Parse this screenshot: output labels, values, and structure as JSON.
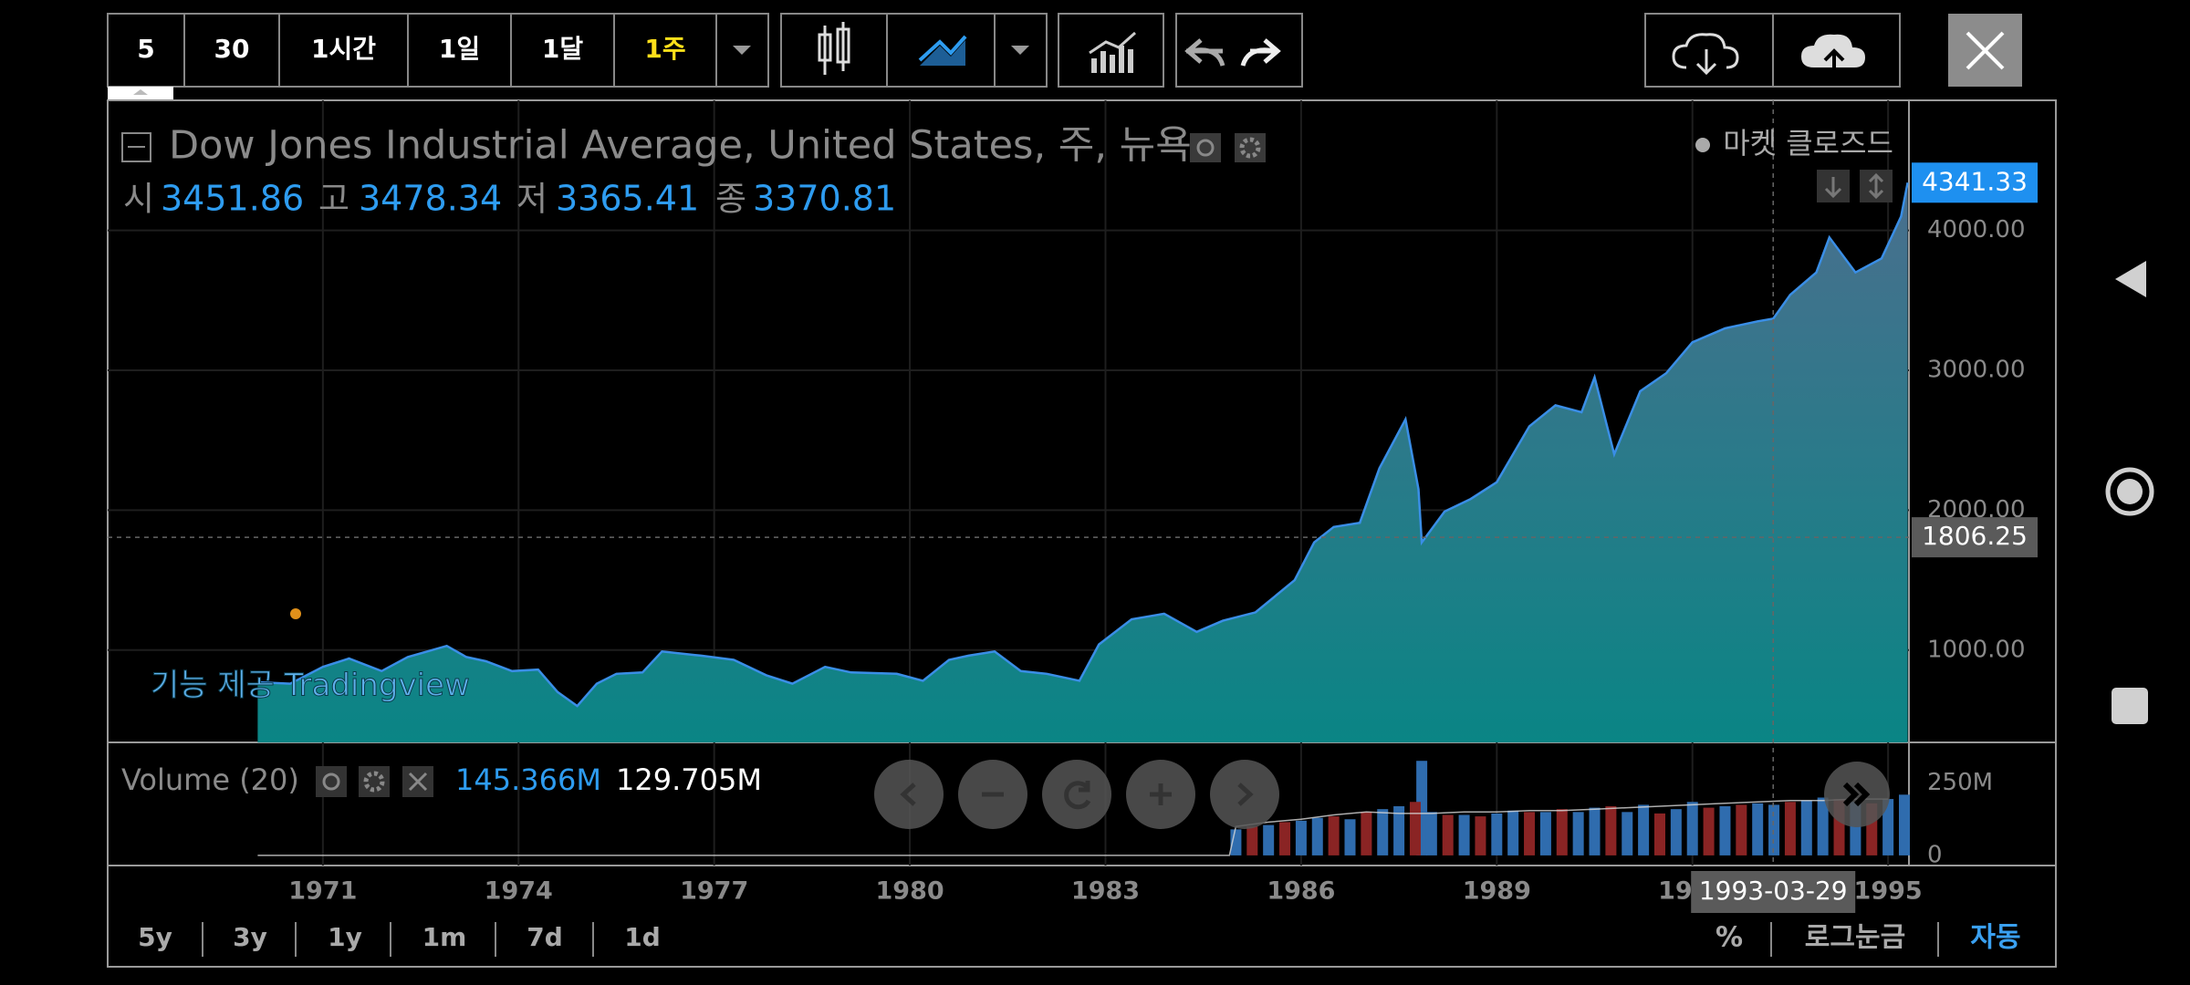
{
  "toolbar": {
    "intervals": [
      "5",
      "30",
      "1시간",
      "1일",
      "1달",
      "1주"
    ],
    "active": "1주"
  },
  "chart_data": {
    "type": "area",
    "title": "Dow Jones Industrial Average, United States, 주, 뉴욕",
    "status": "마켓 클로즈드",
    "ohlc": [
      {
        "label": "시",
        "value": 3451.86
      },
      {
        "label": "고",
        "value": 3478.34
      },
      {
        "label": "저",
        "value": 3365.41
      },
      {
        "label": "종",
        "value": 3370.81
      }
    ],
    "watermark": "기능 제공 Tradingview",
    "x": [
      1970.0,
      1970.5,
      1971.0,
      1971.4,
      1971.9,
      1972.3,
      1972.9,
      1973.2,
      1973.5,
      1973.9,
      1974.3,
      1974.6,
      1974.9,
      1975.2,
      1975.5,
      1975.9,
      1976.2,
      1976.8,
      1977.3,
      1977.8,
      1978.2,
      1978.7,
      1979.1,
      1979.8,
      1980.2,
      1980.6,
      1980.9,
      1981.3,
      1981.7,
      1982.1,
      1982.6,
      1982.9,
      1983.4,
      1983.9,
      1984.4,
      1984.8,
      1985.3,
      1985.9,
      1986.2,
      1986.5,
      1986.9,
      1987.2,
      1987.6,
      1987.8,
      1987.85,
      1988.2,
      1988.6,
      1989.0,
      1989.5,
      1989.9,
      1990.3,
      1990.5,
      1990.8,
      1991.2,
      1991.6,
      1992.0,
      1992.5,
      1993.0,
      1993.24,
      1993.5,
      1993.9,
      1994.1,
      1994.5,
      1994.9,
      1995.2,
      1995.3
    ],
    "values": [
      770,
      760,
      880,
      940,
      850,
      950,
      1030,
      950,
      920,
      850,
      860,
      700,
      600,
      760,
      830,
      840,
      990,
      960,
      930,
      820,
      760,
      880,
      840,
      830,
      780,
      930,
      960,
      990,
      850,
      830,
      780,
      1040,
      1220,
      1260,
      1130,
      1210,
      1270,
      1500,
      1770,
      1880,
      1910,
      2300,
      2650,
      2150,
      1770,
      1990,
      2080,
      2200,
      2600,
      2750,
      2700,
      2950,
      2400,
      2850,
      2980,
      3200,
      3300,
      3350,
      3370,
      3540,
      3700,
      3950,
      3700,
      3800,
      4100,
      4341.33
    ],
    "color": "#3a8ee6",
    "fill_top": "#4a6f8e",
    "fill_bottom": "#0a8585",
    "xlim": [
      1967.7,
      1995.32
    ],
    "xticks": [
      1971,
      1974,
      1977,
      1980,
      1983,
      1986,
      1989,
      1992,
      1995
    ],
    "ylim": [
      340,
      4930
    ],
    "yticks": [
      {
        "value": 1000,
        "label": "1000.00"
      },
      {
        "value": 2000,
        "label": "2000.00"
      },
      {
        "value": 3000,
        "label": "3000.00"
      },
      {
        "value": 4000,
        "label": "4000.00"
      }
    ],
    "grid": true,
    "last_price": 4341.33,
    "crosshair": {
      "date": "1993-03-29",
      "price": 1806.25
    },
    "volume": {
      "title": "Volume (20)",
      "readouts": [
        {
          "value": 145.366,
          "label": "145.366M",
          "color": "#2e9cf0"
        },
        {
          "value": 129.705,
          "label": "129.705M",
          "color": "#ffffff"
        }
      ],
      "ylim": [
        -35,
        375
      ],
      "yticks": [
        {
          "value": 250,
          "label": "250M"
        },
        0
      ],
      "series": [
        {
          "color": "#2f6cae",
          "x": [
            1985.0,
            1985.5,
            1986.0,
            1986.25,
            1986.75,
            1987.25,
            1987.5,
            1987.85,
            1988.0,
            1988.5,
            1989.0,
            1989.25,
            1989.75,
            1990.25,
            1990.5,
            1991.0,
            1991.25,
            1991.75,
            1992.0,
            1992.5,
            1993.0,
            1993.25,
            1993.75,
            1994.0,
            1994.5,
            1995.0,
            1995.25
          ],
          "values": [
            90,
            105,
            120,
            130,
            125,
            160,
            170,
            327,
            150,
            140,
            145,
            155,
            150,
            150,
            165,
            150,
            175,
            160,
            185,
            170,
            180,
            175,
            190,
            200,
            185,
            195,
            210
          ]
        },
        {
          "color": "#8a2424",
          "x": [
            1985.25,
            1985.75,
            1986.5,
            1987.0,
            1987.75,
            1988.25,
            1988.75,
            1989.5,
            1990.0,
            1990.75,
            1991.5,
            1992.25,
            1992.75,
            1993.5,
            1994.25,
            1994.75
          ],
          "values": [
            100,
            115,
            135,
            150,
            185,
            140,
            135,
            150,
            160,
            170,
            145,
            165,
            175,
            185,
            195,
            180
          ]
        }
      ],
      "ma": {
        "color": "#d8d8d8",
        "x": [
          1970.0,
          1984.9,
          1985.0,
          1985.5,
          1986.0,
          1986.5,
          1987.0,
          1987.5,
          1988.0,
          1988.5,
          1989.0,
          1989.5,
          1990.0,
          1990.5,
          1991.0,
          1991.5,
          1992.0,
          1992.5,
          1993.0,
          1993.5,
          1994.0,
          1994.5,
          1995.0
        ],
        "values": [
          0,
          0,
          100,
          115,
          125,
          140,
          150,
          145,
          145,
          150,
          150,
          155,
          155,
          160,
          165,
          170,
          175,
          180,
          185,
          190,
          190,
          195,
          195
        ]
      }
    }
  },
  "footer": {
    "ranges": [
      "5y",
      "3y",
      "1y",
      "1m",
      "7d",
      "1d"
    ],
    "scale_options": [
      "%",
      "로그눈금",
      "자동"
    ]
  }
}
